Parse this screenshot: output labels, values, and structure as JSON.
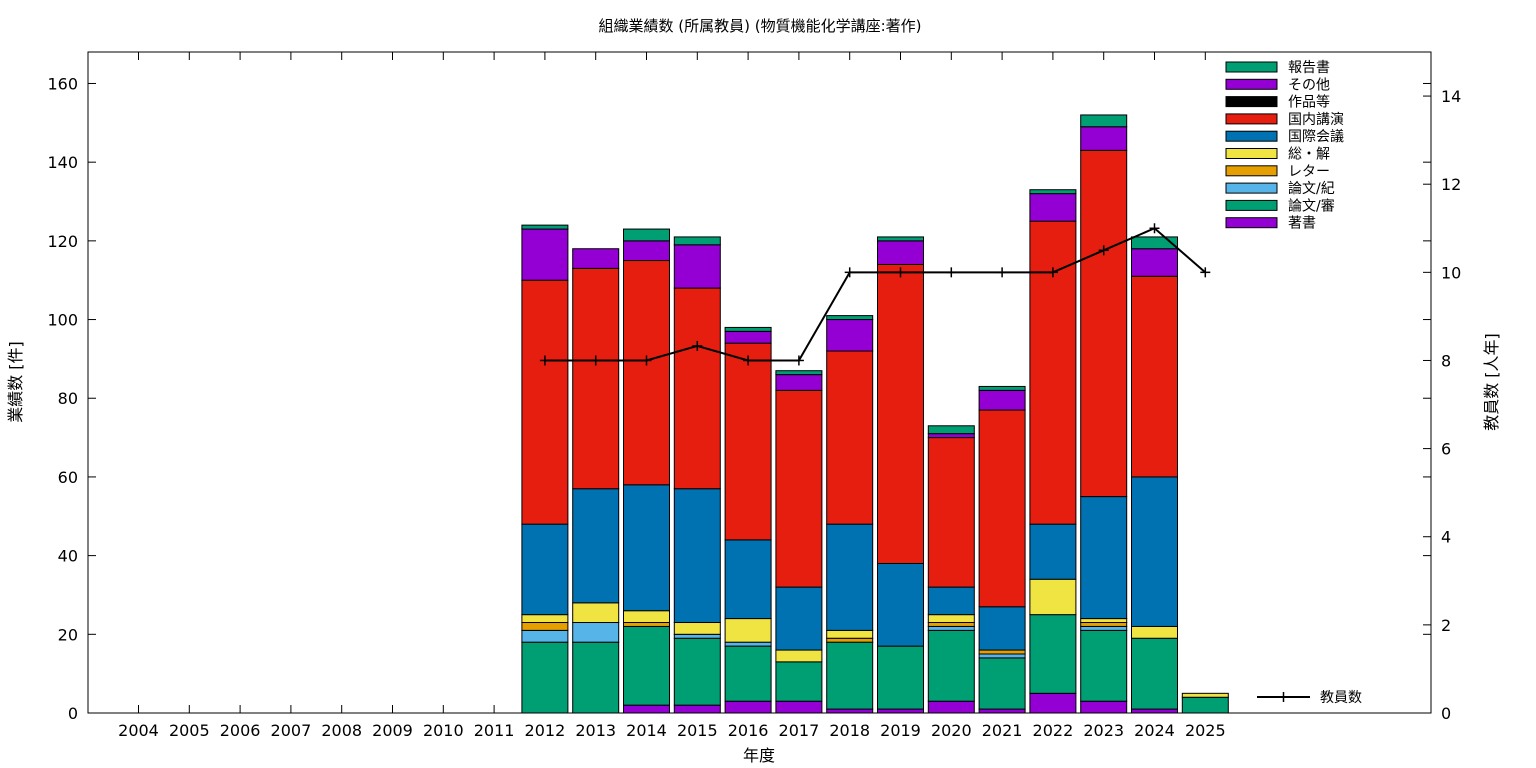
{
  "chart_data": {
    "type": "bar",
    "stacked": true,
    "title": "組織業績数 (所属教員) (物質機能化学講座:著作)",
    "xlabel": "年度",
    "ylabel": "業績数 [件]",
    "y2label": "教員数 [人年]",
    "ylim": [
      0,
      168
    ],
    "y2lim": [
      0,
      15
    ],
    "yticks": [
      0,
      20,
      40,
      60,
      80,
      100,
      120,
      140,
      160
    ],
    "y2ticks": [
      0,
      2,
      4,
      6,
      8,
      10,
      12,
      14
    ],
    "legend_position": "top-right",
    "categories": [
      "2004",
      "2005",
      "2006",
      "2007",
      "2008",
      "2009",
      "2010",
      "2011",
      "2012",
      "2013",
      "2014",
      "2015",
      "2016",
      "2017",
      "2018",
      "2019",
      "2020",
      "2021",
      "2022",
      "2023",
      "2024",
      "2025"
    ],
    "series": [
      {
        "name": "著書",
        "color": "#9400d3",
        "values": [
          0,
          0,
          0,
          0,
          0,
          0,
          0,
          0,
          0,
          0,
          2,
          2,
          3,
          3,
          1,
          1,
          3,
          1,
          5,
          3,
          1,
          0
        ]
      },
      {
        "name": "論文/審",
        "color": "#009e73",
        "values": [
          0,
          0,
          0,
          0,
          0,
          0,
          0,
          0,
          18,
          18,
          20,
          17,
          14,
          10,
          17,
          16,
          18,
          13,
          20,
          18,
          18,
          4
        ]
      },
      {
        "name": "論文/紀",
        "color": "#56b4e9",
        "values": [
          0,
          0,
          0,
          0,
          0,
          0,
          0,
          0,
          3,
          5,
          0,
          1,
          1,
          0,
          0,
          0,
          1,
          1,
          0,
          1,
          0,
          0
        ]
      },
      {
        "name": "レター",
        "color": "#e69f00",
        "values": [
          0,
          0,
          0,
          0,
          0,
          0,
          0,
          0,
          2,
          0,
          1,
          0,
          0,
          0,
          1,
          0,
          1,
          1,
          0,
          1,
          0,
          0
        ]
      },
      {
        "name": "総・解",
        "color": "#f0e442",
        "values": [
          0,
          0,
          0,
          0,
          0,
          0,
          0,
          0,
          2,
          5,
          3,
          3,
          6,
          3,
          2,
          0,
          2,
          0,
          9,
          1,
          3,
          1
        ]
      },
      {
        "name": "国際会議",
        "color": "#0072b2",
        "values": [
          0,
          0,
          0,
          0,
          0,
          0,
          0,
          0,
          23,
          29,
          32,
          34,
          20,
          16,
          27,
          21,
          7,
          11,
          14,
          31,
          38,
          0
        ]
      },
      {
        "name": "国内講演",
        "color": "#e51e10",
        "values": [
          0,
          0,
          0,
          0,
          0,
          0,
          0,
          0,
          62,
          56,
          57,
          51,
          50,
          50,
          44,
          76,
          38,
          50,
          77,
          88,
          51,
          0
        ]
      },
      {
        "name": "作品等",
        "color": "#000000",
        "values": [
          0,
          0,
          0,
          0,
          0,
          0,
          0,
          0,
          0,
          0,
          0,
          0,
          0,
          0,
          0,
          0,
          0,
          0,
          0,
          0,
          0,
          0
        ]
      },
      {
        "name": "その他",
        "color": "#9400d3",
        "values": [
          0,
          0,
          0,
          0,
          0,
          0,
          0,
          0,
          13,
          5,
          5,
          11,
          3,
          4,
          8,
          6,
          1,
          5,
          7,
          6,
          7,
          0
        ]
      },
      {
        "name": "報告書",
        "color": "#009e73",
        "values": [
          0,
          0,
          0,
          0,
          0,
          0,
          0,
          0,
          1,
          0,
          3,
          2,
          1,
          1,
          1,
          1,
          2,
          1,
          1,
          3,
          3,
          0
        ]
      }
    ],
    "line_series": {
      "name": "教員数",
      "color": "#000000",
      "x": [
        "2012",
        "2013",
        "2014",
        "2015",
        "2016",
        "2017",
        "2018",
        "2019",
        "2020",
        "2021",
        "2022",
        "2023",
        "2024",
        "2025"
      ],
      "values": [
        8,
        8,
        8,
        8.33,
        8,
        8,
        10,
        10,
        10,
        10,
        10,
        10.5,
        11,
        10
      ]
    }
  }
}
